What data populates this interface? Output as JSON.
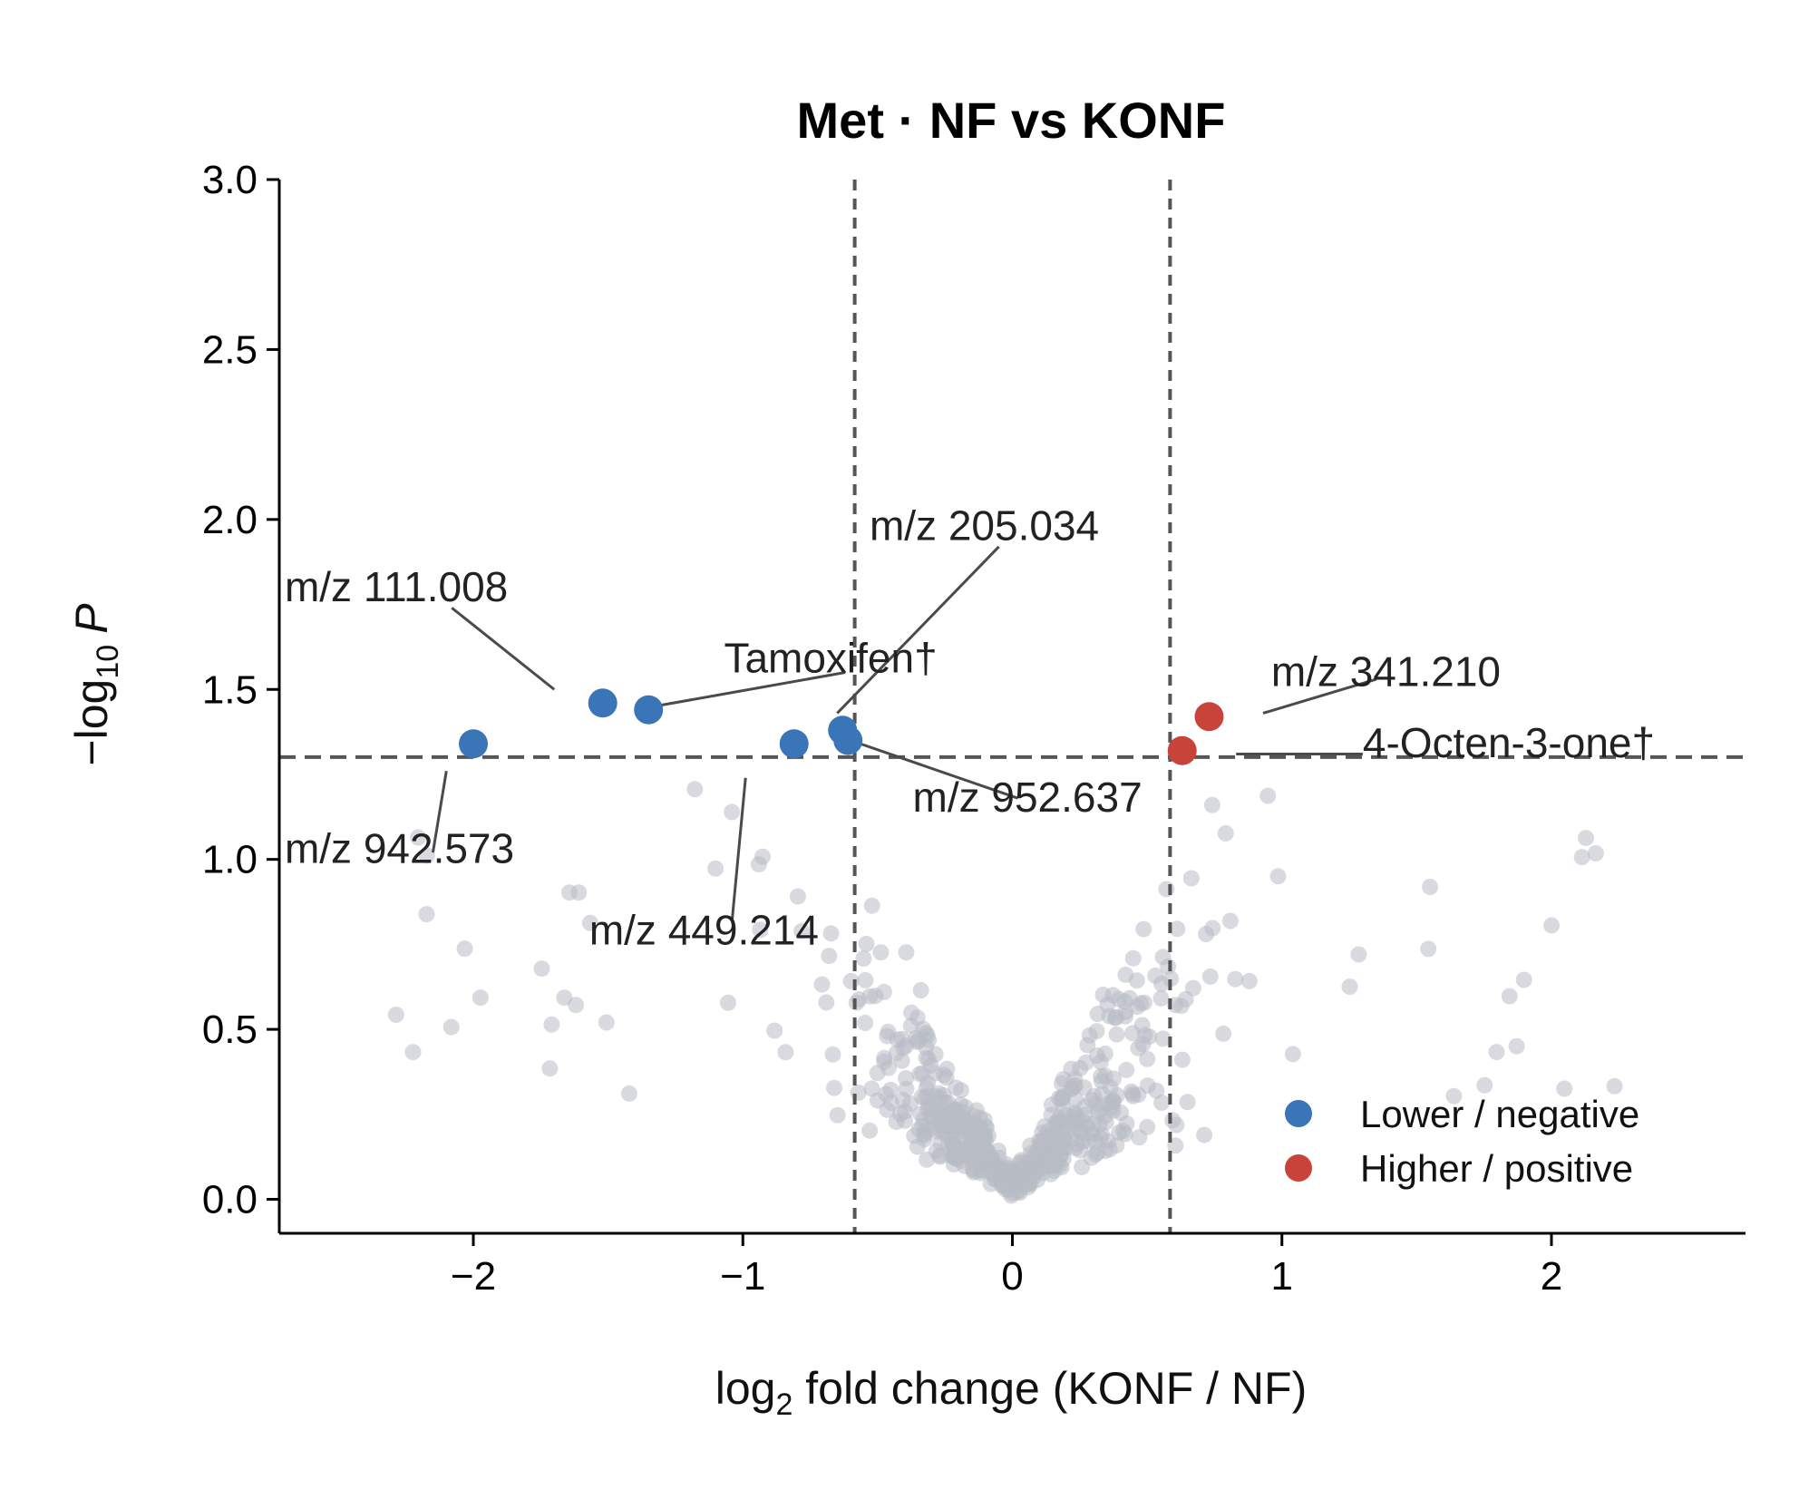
{
  "chart_data": {
    "type": "scatter",
    "title": "Met · NF vs KONF",
    "xlabel_prefix": "log",
    "xlabel_sub": "2",
    "xlabel_suffix": " fold change (KONF / NF)",
    "ylabel_prefix": "−log",
    "ylabel_sub": "10",
    "ylabel_italic": "P",
    "xlim": [
      -2.72,
      2.72
    ],
    "ylim": [
      -0.1,
      3.0
    ],
    "xticks": [
      -2,
      -1,
      0,
      1,
      2
    ],
    "xtick_labels": [
      "−2",
      "−1",
      "0",
      "1",
      "2"
    ],
    "yticks": [
      0.0,
      0.5,
      1.0,
      1.5,
      2.0,
      2.5,
      3.0
    ],
    "ytick_labels": [
      "0.0",
      "0.5",
      "1.0",
      "1.5",
      "2.0",
      "2.5",
      "3.0"
    ],
    "thresholds": {
      "fc_lines": [
        -0.585,
        0.585
      ],
      "p_line": 1.301
    },
    "colors": {
      "negative": "#3a75b7",
      "positive": "#c8443a",
      "background": "#b8bcc4",
      "threshold": "#555555"
    },
    "legend": {
      "placement": "bottom-right",
      "entries": [
        {
          "label": "Lower / negative",
          "color": "#3a75b7"
        },
        {
          "label": "Higher / positive",
          "color": "#c8443a"
        }
      ]
    },
    "series": [
      {
        "name": "Lower / negative",
        "points": [
          {
            "x": -2.0,
            "y": 1.34
          },
          {
            "x": -1.52,
            "y": 1.46
          },
          {
            "x": -1.35,
            "y": 1.44
          },
          {
            "x": -0.81,
            "y": 1.34
          },
          {
            "x": -0.63,
            "y": 1.38
          },
          {
            "x": -0.61,
            "y": 1.35
          }
        ]
      },
      {
        "name": "Higher / positive",
        "points": [
          {
            "x": 0.63,
            "y": 1.32
          },
          {
            "x": 0.73,
            "y": 1.42
          }
        ]
      }
    ],
    "annotations": [
      {
        "text": "m/z 111.008",
        "x": -2.7,
        "y": 1.76,
        "px": -1.7,
        "py": 1.5,
        "lx": -2.08,
        "ly": 1.74
      },
      {
        "text": "m/z 205.034",
        "x": -0.53,
        "y": 1.94,
        "px": -0.65,
        "py": 1.43,
        "lx": -0.05,
        "ly": 1.92
      },
      {
        "text": "Tamoxifen†",
        "x": -1.07,
        "y": 1.55,
        "px": -1.33,
        "py": 1.45,
        "lx": -0.62,
        "ly": 1.55
      },
      {
        "text": "m/z 341.210",
        "x": 0.96,
        "y": 1.51,
        "px": 0.93,
        "py": 1.43,
        "lx": 1.35,
        "ly": 1.53
      },
      {
        "text": "4-Octen-3-one†",
        "x": 1.3,
        "y": 1.3,
        "px": 0.83,
        "py": 1.31,
        "lx": 1.3,
        "ly": 1.31
      },
      {
        "text": "m/z 952.637",
        "x": -0.37,
        "y": 1.14,
        "px": -0.6,
        "py": 1.35,
        "lx": 0.02,
        "ly": 1.18
      },
      {
        "text": "m/z 942.573",
        "x": -2.7,
        "y": 0.99,
        "px": -2.1,
        "py": 1.26,
        "lx": -2.15,
        "ly": 1.02
      },
      {
        "text": "m/z 449.214",
        "x": -1.57,
        "y": 0.75,
        "px": -0.99,
        "py": 1.24,
        "lx": -1.04,
        "ly": 0.82
      }
    ],
    "background_point_count": 600
  }
}
